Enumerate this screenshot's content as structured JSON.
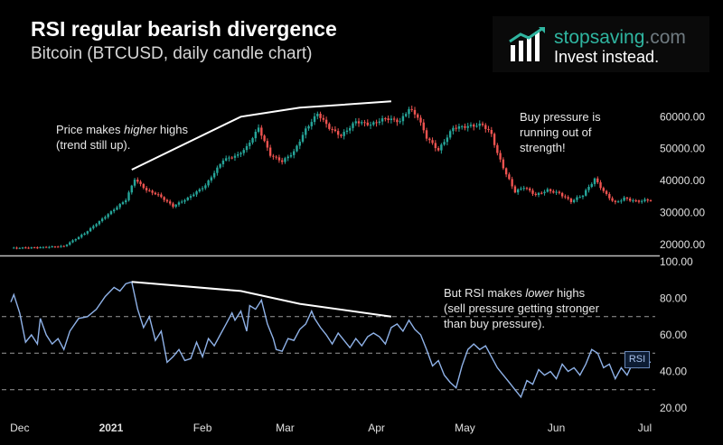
{
  "header": {
    "title": "RSI regular bearish divergence",
    "subtitle": "Bitcoin (BTCUSD, daily candle chart)"
  },
  "logo": {
    "brand_main": "stopsaving",
    "brand_suffix": ".com",
    "tagline": "Invest instead.",
    "icon": "bar-chart-arrow-icon"
  },
  "annotations": {
    "price_note": {
      "before": "Price makes ",
      "emphasis": "higher",
      "after": " highs",
      "line2": "(trend still up)."
    },
    "buy_note": {
      "line1": "Buy pressure is",
      "line2": "running out of",
      "line3": "strength!"
    },
    "rsi_note": {
      "before": "But RSI makes ",
      "emphasis": "lower",
      "after": " highs",
      "line2": "(sell pressure getting stronger",
      "line3": "than buy pressure)."
    }
  },
  "colors": {
    "up": "#26a69a",
    "down": "#ef5350",
    "rsi": "#8fb2e8",
    "background": "#000000"
  },
  "chart_data": [
    {
      "type": "candlestick",
      "title": "Bitcoin (BTCUSD, daily candle chart)",
      "ylim": [
        18000,
        66000
      ],
      "yticks": [
        20000,
        30000,
        40000,
        50000,
        60000
      ],
      "ytick_labels": [
        "20000.00",
        "30000.00",
        "40000.00",
        "50000.00",
        "60000.00"
      ],
      "x_range_days": [
        0,
        217
      ],
      "xticks": [
        {
          "day": 3,
          "label": "Dec"
        },
        {
          "day": 34,
          "label": "2021"
        },
        {
          "day": 65,
          "label": "Feb"
        },
        {
          "day": 93,
          "label": "Mar"
        },
        {
          "day": 124,
          "label": "Apr"
        },
        {
          "day": 154,
          "label": "May"
        },
        {
          "day": 185,
          "label": "Jun"
        },
        {
          "day": 215,
          "label": "Jul"
        }
      ],
      "close_anchors": [
        [
          0,
          18900
        ],
        [
          10,
          19100
        ],
        [
          18,
          19500
        ],
        [
          25,
          23500
        ],
        [
          33,
          29500
        ],
        [
          39,
          34000
        ],
        [
          42,
          40500
        ],
        [
          46,
          37000
        ],
        [
          50,
          35500
        ],
        [
          55,
          32000
        ],
        [
          60,
          34500
        ],
        [
          66,
          38500
        ],
        [
          72,
          46500
        ],
        [
          77,
          48000
        ],
        [
          80,
          50500
        ],
        [
          84,
          56500
        ],
        [
          88,
          48000
        ],
        [
          92,
          46000
        ],
        [
          96,
          49000
        ],
        [
          100,
          56000
        ],
        [
          104,
          61000
        ],
        [
          108,
          56500
        ],
        [
          112,
          54000
        ],
        [
          117,
          58500
        ],
        [
          122,
          57500
        ],
        [
          127,
          59500
        ],
        [
          132,
          58500
        ],
        [
          135,
          62500
        ],
        [
          138,
          60000
        ],
        [
          141,
          53500
        ],
        [
          145,
          49500
        ],
        [
          150,
          56500
        ],
        [
          155,
          57000
        ],
        [
          160,
          57500
        ],
        [
          163,
          54500
        ],
        [
          165,
          48500
        ],
        [
          168,
          42000
        ],
        [
          171,
          36500
        ],
        [
          174,
          38000
        ],
        [
          178,
          35500
        ],
        [
          182,
          37000
        ],
        [
          186,
          36000
        ],
        [
          190,
          33500
        ],
        [
          194,
          35500
        ],
        [
          198,
          40500
        ],
        [
          202,
          35500
        ],
        [
          205,
          33000
        ],
        [
          208,
          34500
        ],
        [
          212,
          33500
        ],
        [
          217,
          34000
        ]
      ],
      "divergence_line": [
        [
          41,
          43400
        ],
        [
          78,
          60000
        ],
        [
          98,
          62800
        ],
        [
          129,
          64800
        ]
      ]
    },
    {
      "type": "line",
      "title": "RSI",
      "series": [
        {
          "name": "RSI",
          "legend": "RSI"
        }
      ],
      "ylim": [
        20,
        100
      ],
      "yticks": [
        20,
        40,
        60,
        80,
        100
      ],
      "ytick_labels": [
        "20.00",
        "40.00",
        "60.00",
        "80.00",
        "100.00"
      ],
      "levels": [
        70,
        50,
        30
      ],
      "rsi_anchors": [
        [
          0,
          78
        ],
        [
          1,
          82
        ],
        [
          3,
          72
        ],
        [
          5,
          56
        ],
        [
          7,
          60
        ],
        [
          9,
          55
        ],
        [
          10,
          69
        ],
        [
          12,
          60
        ],
        [
          14,
          55
        ],
        [
          16,
          58
        ],
        [
          18,
          52
        ],
        [
          20,
          62
        ],
        [
          23,
          69
        ],
        [
          26,
          70
        ],
        [
          29,
          74
        ],
        [
          32,
          81
        ],
        [
          35,
          86
        ],
        [
          37,
          84
        ],
        [
          39,
          88
        ],
        [
          41,
          89
        ],
        [
          43,
          74
        ],
        [
          45,
          64
        ],
        [
          47,
          70
        ],
        [
          49,
          57
        ],
        [
          51,
          62
        ],
        [
          53,
          45
        ],
        [
          55,
          48
        ],
        [
          57,
          52
        ],
        [
          59,
          46
        ],
        [
          61,
          47
        ],
        [
          63,
          56
        ],
        [
          65,
          48
        ],
        [
          67,
          58
        ],
        [
          69,
          54
        ],
        [
          71,
          60
        ],
        [
          73,
          66
        ],
        [
          75,
          72
        ],
        [
          76,
          68
        ],
        [
          78,
          73
        ],
        [
          80,
          62
        ],
        [
          81,
          76
        ],
        [
          83,
          74
        ],
        [
          85,
          79
        ],
        [
          87,
          66
        ],
        [
          89,
          58
        ],
        [
          90,
          52
        ],
        [
          92,
          51
        ],
        [
          94,
          58
        ],
        [
          96,
          57
        ],
        [
          98,
          63
        ],
        [
          100,
          66
        ],
        [
          102,
          73
        ],
        [
          103,
          69
        ],
        [
          105,
          64
        ],
        [
          107,
          60
        ],
        [
          109,
          55
        ],
        [
          111,
          61
        ],
        [
          113,
          57
        ],
        [
          115,
          53
        ],
        [
          117,
          58
        ],
        [
          119,
          54
        ],
        [
          121,
          59
        ],
        [
          123,
          61
        ],
        [
          125,
          59
        ],
        [
          127,
          55
        ],
        [
          129,
          64
        ],
        [
          131,
          66
        ],
        [
          133,
          62
        ],
        [
          135,
          68
        ],
        [
          137,
          63
        ],
        [
          139,
          60
        ],
        [
          141,
          52
        ],
        [
          143,
          43
        ],
        [
          145,
          46
        ],
        [
          147,
          38
        ],
        [
          149,
          34
        ],
        [
          151,
          31
        ],
        [
          153,
          43
        ],
        [
          155,
          52
        ],
        [
          157,
          55
        ],
        [
          159,
          52
        ],
        [
          161,
          54
        ],
        [
          163,
          48
        ],
        [
          165,
          42
        ],
        [
          167,
          38
        ],
        [
          169,
          34
        ],
        [
          171,
          30
        ],
        [
          173,
          26
        ],
        [
          175,
          35
        ],
        [
          177,
          33
        ],
        [
          179,
          41
        ],
        [
          181,
          38
        ],
        [
          183,
          40
        ],
        [
          185,
          36
        ],
        [
          187,
          44
        ],
        [
          189,
          40
        ],
        [
          191,
          42
        ],
        [
          193,
          38
        ],
        [
          195,
          44
        ],
        [
          197,
          52
        ],
        [
          199,
          50
        ],
        [
          201,
          42
        ],
        [
          203,
          44
        ],
        [
          205,
          36
        ],
        [
          207,
          42
        ],
        [
          209,
          38
        ],
        [
          211,
          45
        ],
        [
          213,
          42
        ],
        [
          215,
          46
        ],
        [
          217,
          45
        ]
      ],
      "divergence_line": [
        [
          41,
          89
        ],
        [
          78,
          84
        ],
        [
          98,
          77
        ],
        [
          129,
          70
        ]
      ]
    }
  ]
}
